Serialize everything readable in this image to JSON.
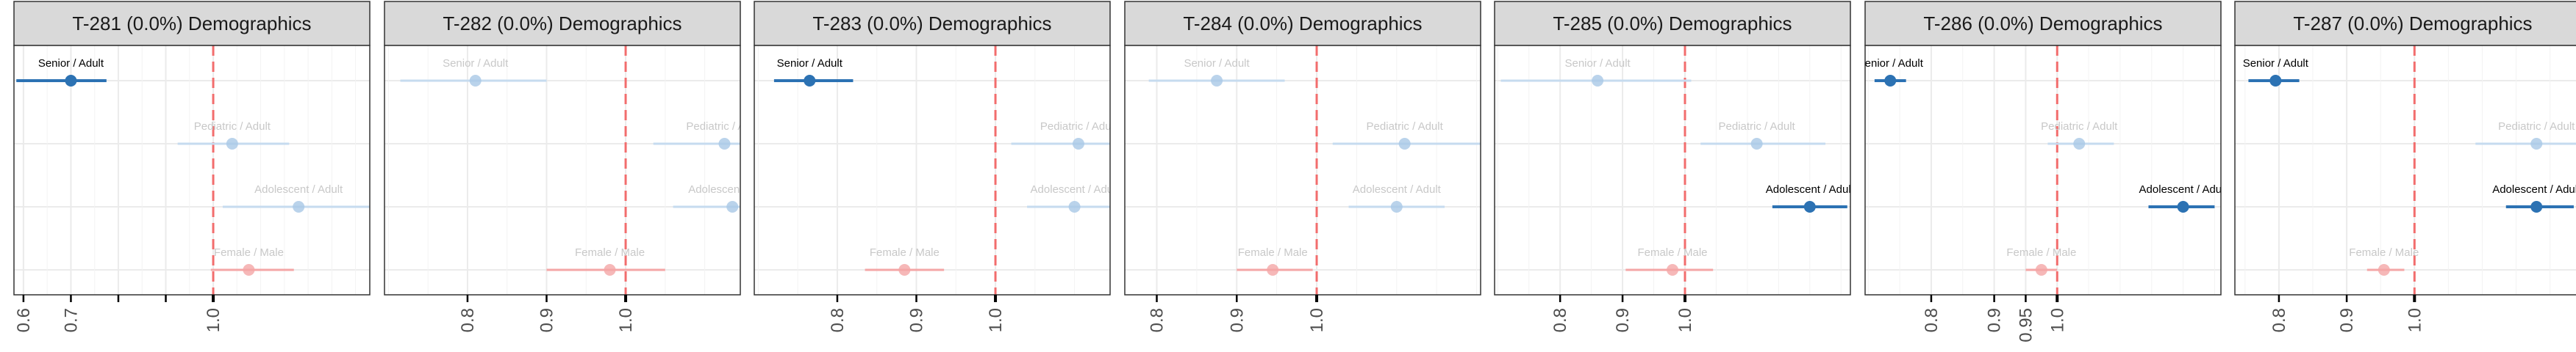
{
  "chart_data": [
    {
      "type": "scatter",
      "title": "T-281 (0.0%) Demographics",
      "xlim": [
        0.58,
        1.33
      ],
      "ticks": [
        0.6,
        0.7,
        0.8,
        0.9,
        1.0
      ],
      "tick_labels": [
        "0.6",
        "0.7",
        "",
        "",
        "1.0"
      ],
      "reference_x": 1.0,
      "grid": true,
      "points": [
        {
          "label": "Senior / Adult",
          "estimate": 0.7,
          "low": 0.585,
          "high": 0.775,
          "highlighted": true
        },
        {
          "label": "Pediatric / Adult",
          "estimate": 1.04,
          "low": 0.925,
          "high": 1.16,
          "highlighted": false
        },
        {
          "label": "Adolescent / Adult",
          "estimate": 1.18,
          "low": 1.02,
          "high": 1.34,
          "highlighted": false
        },
        {
          "label": "Female / Male",
          "estimate": 1.075,
          "low": 0.995,
          "high": 1.17,
          "highlighted": false
        }
      ]
    },
    {
      "type": "scatter",
      "title": "T-282 (0.0%) Demographics",
      "xlim": [
        0.695,
        1.145
      ],
      "ticks": [
        0.8,
        0.9,
        1.0
      ],
      "tick_labels": [
        "0.8",
        "0.9",
        "1.0"
      ],
      "reference_x": 1.0,
      "grid": true,
      "points": [
        {
          "label": "Senior / Adult",
          "estimate": 0.81,
          "low": 0.715,
          "high": 0.9,
          "highlighted": false
        },
        {
          "label": "Pediatric / Adult",
          "estimate": 1.125,
          "low": 1.035,
          "high": 1.22,
          "highlighted": false
        },
        {
          "label": "Adolescent / Adult",
          "estimate": 1.135,
          "low": 1.06,
          "high": 1.22,
          "highlighted": false
        },
        {
          "label": "Female / Male",
          "estimate": 0.98,
          "low": 0.9,
          "high": 1.05,
          "highlighted": false
        }
      ]
    },
    {
      "type": "scatter",
      "title": "T-283 (0.0%) Demographics",
      "xlim": [
        0.695,
        1.145
      ],
      "ticks": [
        0.8,
        0.9,
        1.0
      ],
      "tick_labels": [
        "0.8",
        "0.9",
        "1.0"
      ],
      "reference_x": 1.0,
      "grid": true,
      "points": [
        {
          "label": "Senior / Adult",
          "estimate": 0.765,
          "low": 0.72,
          "high": 0.82,
          "highlighted": true
        },
        {
          "label": "Pediatric / Adult",
          "estimate": 1.105,
          "low": 1.02,
          "high": 1.19,
          "highlighted": false
        },
        {
          "label": "Adolescent / Adult",
          "estimate": 1.1,
          "low": 1.04,
          "high": 1.16,
          "highlighted": false
        },
        {
          "label": "Female / Male",
          "estimate": 0.885,
          "low": 0.835,
          "high": 0.935,
          "highlighted": false
        }
      ]
    },
    {
      "type": "scatter",
      "title": "T-284 (0.0%) Demographics",
      "xlim": [
        0.76,
        1.205
      ],
      "ticks": [
        0.8,
        0.9,
        1.0
      ],
      "tick_labels": [
        "0.8",
        "0.9",
        "1.0"
      ],
      "reference_x": 1.0,
      "grid": true,
      "points": [
        {
          "label": "Senior / Adult",
          "estimate": 0.875,
          "low": 0.79,
          "high": 0.96,
          "highlighted": false
        },
        {
          "label": "Pediatric / Adult",
          "estimate": 1.11,
          "low": 1.02,
          "high": 1.21,
          "highlighted": false
        },
        {
          "label": "Adolescent / Adult",
          "estimate": 1.1,
          "low": 1.04,
          "high": 1.16,
          "highlighted": false
        },
        {
          "label": "Female / Male",
          "estimate": 0.945,
          "low": 0.9,
          "high": 0.995,
          "highlighted": false
        }
      ]
    },
    {
      "type": "scatter",
      "title": "T-285 (0.0%) Demographics",
      "xlim": [
        0.695,
        1.265
      ],
      "ticks": [
        0.8,
        0.9,
        1.0
      ],
      "tick_labels": [
        "0.8",
        "0.9",
        "1.0"
      ],
      "reference_x": 1.0,
      "grid": true,
      "points": [
        {
          "label": "Senior / Adult",
          "estimate": 0.86,
          "low": 0.705,
          "high": 1.01,
          "highlighted": false
        },
        {
          "label": "Pediatric / Adult",
          "estimate": 1.115,
          "low": 1.025,
          "high": 1.225,
          "highlighted": false
        },
        {
          "label": "Adolescent / Adult",
          "estimate": 1.2,
          "low": 1.14,
          "high": 1.26,
          "highlighted": true
        },
        {
          "label": "Female / Male",
          "estimate": 0.98,
          "low": 0.905,
          "high": 1.045,
          "highlighted": false
        }
      ]
    },
    {
      "type": "scatter",
      "title": "T-286 (0.0%) Demographics",
      "xlim": [
        0.695,
        1.26
      ],
      "ticks": [
        0.8,
        0.9,
        0.95,
        1.0
      ],
      "tick_labels": [
        "0.8",
        "0.9",
        "0.95",
        "1.0"
      ],
      "reference_x": 1.0,
      "grid": true,
      "points": [
        {
          "label": "Senior / Adult",
          "estimate": 0.735,
          "low": 0.71,
          "high": 0.76,
          "highlighted": true
        },
        {
          "label": "Pediatric / Adult",
          "estimate": 1.035,
          "low": 0.985,
          "high": 1.09,
          "highlighted": false
        },
        {
          "label": "Adolescent / Adult",
          "estimate": 1.2,
          "low": 1.145,
          "high": 1.25,
          "highlighted": true
        },
        {
          "label": "Female / Male",
          "estimate": 0.975,
          "low": 0.95,
          "high": 1.0,
          "highlighted": false
        }
      ]
    },
    {
      "type": "scatter",
      "title": "T-287 (0.0%) Demographics",
      "xlim": [
        0.735,
        1.26
      ],
      "ticks": [
        0.8,
        0.9,
        1.0
      ],
      "tick_labels": [
        "0.8",
        "0.9",
        "1.0"
      ],
      "reference_x": 1.0,
      "grid": true,
      "points": [
        {
          "label": "Senior / Adult",
          "estimate": 0.795,
          "low": 0.755,
          "high": 0.83,
          "highlighted": true
        },
        {
          "label": "Pediatric / Adult",
          "estimate": 1.18,
          "low": 1.09,
          "high": 1.265,
          "highlighted": false
        },
        {
          "label": "Adolescent / Adult",
          "estimate": 1.18,
          "low": 1.135,
          "high": 1.235,
          "highlighted": true
        },
        {
          "label": "Female / Male",
          "estimate": 0.955,
          "low": 0.93,
          "high": 0.985,
          "highlighted": false
        }
      ]
    }
  ],
  "colors": {
    "highlight": "#2c72b3",
    "muted_point": "#a9c8e6",
    "muted_line": "#c6dbef",
    "female_male": "#f4a6a6",
    "reference_line": "#f26d6d",
    "strip_fill": "#d9d9d9",
    "grid": "#ebebeb",
    "axis": "#000000"
  }
}
